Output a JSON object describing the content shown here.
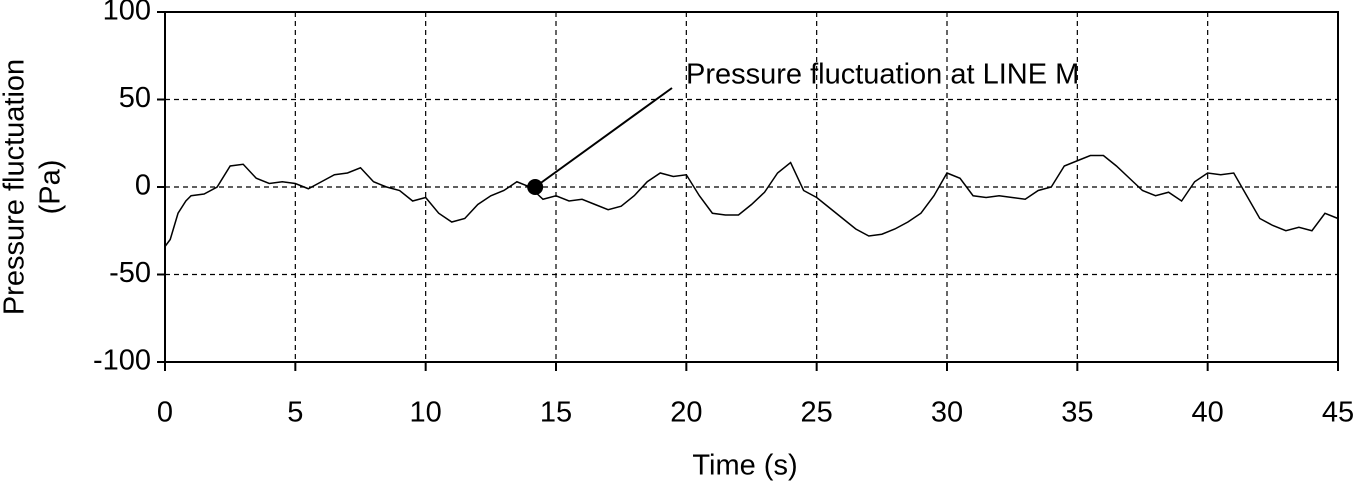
{
  "chart_data": {
    "type": "line",
    "xlabel": "Time (s)",
    "ylabel": [
      "Pressure fluctuation",
      "(Pa)"
    ],
    "annotation": {
      "text": "Pressure fluctuation at LINE M",
      "x": 14.2,
      "y": 0
    },
    "x": [
      0,
      0.2,
      0.5,
      0.8,
      1,
      1.5,
      2,
      2.5,
      3,
      3.5,
      4,
      4.5,
      5,
      5.5,
      6,
      6.5,
      7,
      7.5,
      8,
      8.5,
      9,
      9.5,
      10,
      10.5,
      11,
      11.5,
      12,
      12.5,
      13,
      13.5,
      14,
      14.5,
      15,
      15.5,
      16,
      16.5,
      17,
      17.5,
      18,
      18.5,
      19,
      19.5,
      20,
      20.5,
      21,
      21.5,
      22,
      22.5,
      23,
      23.5,
      24,
      24.5,
      25,
      25.5,
      26,
      26.5,
      27,
      27.5,
      28,
      28.5,
      29,
      29.5,
      30,
      30.5,
      31,
      31.5,
      32,
      32.5,
      33,
      33.5,
      34,
      34.5,
      35,
      35.5,
      36,
      36.5,
      37,
      37.5,
      38,
      38.5,
      39,
      39.5,
      40,
      40.5,
      41,
      41.5,
      42,
      42.5,
      43,
      43.5,
      44,
      44.5,
      45
    ],
    "series": [
      {
        "name": "Pressure fluctuation at LINE M",
        "color": "#000000",
        "values": [
          -34,
          -30,
          -15,
          -8,
          -5,
          -4,
          0,
          12,
          13,
          5,
          2,
          3,
          2,
          -1,
          3,
          7,
          8,
          11,
          3,
          0,
          -2,
          -8,
          -6,
          -15,
          -20,
          -18,
          -10,
          -5,
          -2,
          3,
          0,
          -7,
          -5,
          -8,
          -7,
          -10,
          -13,
          -11,
          -5,
          3,
          8,
          6,
          7,
          -5,
          -15,
          -16,
          -16,
          -10,
          -3,
          8,
          14,
          -2,
          -6,
          -12,
          -18,
          -24,
          -28,
          -27,
          -24,
          -20,
          -15,
          -5,
          8,
          5,
          -5,
          -6,
          -5,
          -6,
          -7,
          -2,
          0,
          12,
          15,
          18,
          18,
          12,
          5,
          -2,
          -5,
          -3,
          -8,
          3,
          8,
          7,
          8,
          -5,
          -18,
          -22,
          -25,
          -23,
          -25,
          -15,
          -18
        ]
      }
    ],
    "xlim": [
      0,
      45
    ],
    "xticks": [
      0,
      5,
      10,
      15,
      20,
      25,
      30,
      35,
      40,
      45
    ],
    "ylim": [
      -100,
      100
    ],
    "yticks": [
      -100,
      -50,
      0,
      50,
      100
    ],
    "grid": true
  }
}
